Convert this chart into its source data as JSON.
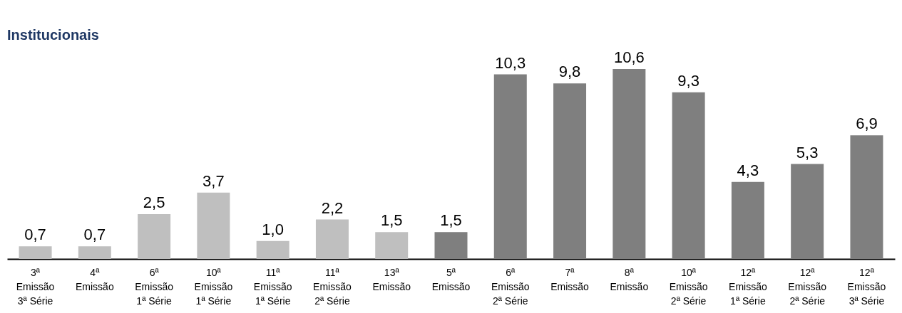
{
  "chart_data": {
    "type": "bar",
    "title": "Institucionais",
    "categories": [
      "3ª\nEmissão\n3ª Série",
      "4ª\nEmissão",
      "6ª\nEmissão\n1ª Série",
      "10ª\nEmissão\n1ª Série",
      "11ª\nEmissão\n1ª Série",
      "11ª\nEmissão\n2ª Série",
      "13ª\nEmissão",
      "5ª\nEmissão",
      "6ª\nEmissão\n2ª Série",
      "7ª\nEmissão",
      "8ª\nEmissão",
      "10ª\nEmissão\n2ª Série",
      "12ª\nEmissão\n1ª Série",
      "12ª\nEmissão\n2ª Série",
      "12ª\nEmissão\n3ª Série"
    ],
    "values": [
      0.7,
      0.7,
      2.5,
      3.7,
      1.0,
      2.2,
      1.5,
      1.5,
      10.3,
      9.8,
      10.6,
      9.3,
      4.3,
      5.3,
      6.9
    ],
    "value_labels": [
      "0,7",
      "0,7",
      "2,5",
      "3,7",
      "1,0",
      "2,2",
      "1,5",
      "1,5",
      "10,3",
      "9,8",
      "10,6",
      "9,3",
      "4,3",
      "5,3",
      "6,9"
    ],
    "colors": [
      "#bfbfbf",
      "#bfbfbf",
      "#bfbfbf",
      "#bfbfbf",
      "#bfbfbf",
      "#bfbfbf",
      "#bfbfbf",
      "#7f7f7f",
      "#7f7f7f",
      "#7f7f7f",
      "#7f7f7f",
      "#7f7f7f",
      "#7f7f7f",
      "#7f7f7f",
      "#7f7f7f"
    ],
    "grid": false,
    "legend": false
  }
}
